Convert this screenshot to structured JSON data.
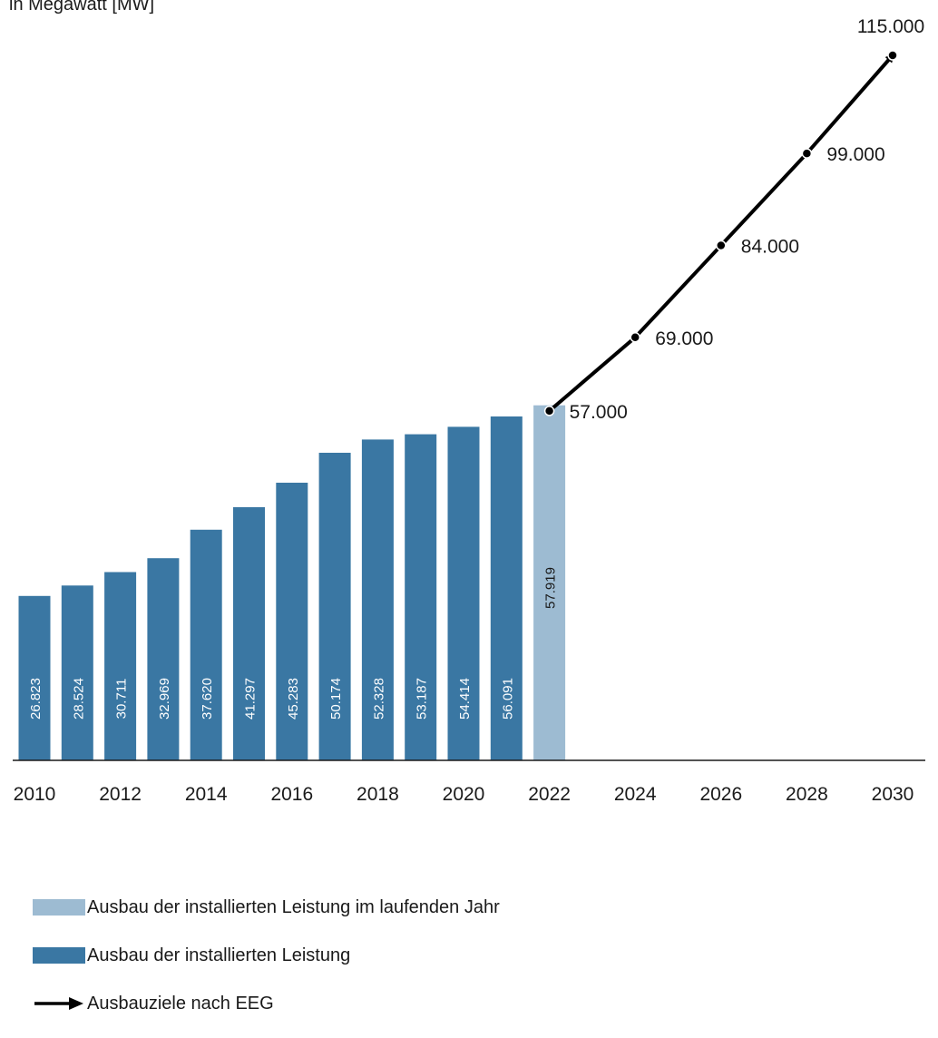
{
  "unit_label": "in Megawatt [MW]",
  "colors": {
    "bar": "#3a77a3",
    "bar_current": "#9dbbd2",
    "target_line": "#000000",
    "axis": "#1a1a1a",
    "bar_label": "#ffffff",
    "bar_current_label": "#1a1a1a"
  },
  "chart_data": {
    "type": "bar",
    "title": "",
    "ylabel": "in Megawatt [MW]",
    "xlabel": "",
    "ylim": [
      0,
      115000
    ],
    "grid": false,
    "x_ticks": [
      "2010",
      "2012",
      "2014",
      "2016",
      "2018",
      "2020",
      "2022",
      "2024",
      "2026",
      "2028",
      "2030"
    ],
    "bars": [
      {
        "year": 2010,
        "value": 26823,
        "label": "26.823",
        "series": "Ausbau der installierten Leistung"
      },
      {
        "year": 2011,
        "value": 28524,
        "label": "28.524",
        "series": "Ausbau der installierten Leistung"
      },
      {
        "year": 2012,
        "value": 30711,
        "label": "30.711",
        "series": "Ausbau der installierten Leistung"
      },
      {
        "year": 2013,
        "value": 32969,
        "label": "32.969",
        "series": "Ausbau der installierten Leistung"
      },
      {
        "year": 2014,
        "value": 37620,
        "label": "37.620",
        "series": "Ausbau der installierten Leistung"
      },
      {
        "year": 2015,
        "value": 41297,
        "label": "41.297",
        "series": "Ausbau der installierten Leistung"
      },
      {
        "year": 2016,
        "value": 45283,
        "label": "45.283",
        "series": "Ausbau der installierten Leistung"
      },
      {
        "year": 2017,
        "value": 50174,
        "label": "50.174",
        "series": "Ausbau der installierten Leistung"
      },
      {
        "year": 2018,
        "value": 52328,
        "label": "52.328",
        "series": "Ausbau der installierten Leistung"
      },
      {
        "year": 2019,
        "value": 53187,
        "label": "53.187",
        "series": "Ausbau der installierten Leistung"
      },
      {
        "year": 2020,
        "value": 54414,
        "label": "54.414",
        "series": "Ausbau der installierten Leistung"
      },
      {
        "year": 2021,
        "value": 56091,
        "label": "56.091",
        "series": "Ausbau der installierten Leistung"
      },
      {
        "year": 2022,
        "value": 57919,
        "label": "57.919",
        "series": "Ausbau der installierten Leistung im laufenden Jahr"
      }
    ],
    "targets": {
      "name": "Ausbauziele nach EEG",
      "points": [
        {
          "year": 2022,
          "value": 57000,
          "label": "57.000"
        },
        {
          "year": 2024,
          "value": 69000,
          "label": "69.000"
        },
        {
          "year": 2026,
          "value": 84000,
          "label": "84.000"
        },
        {
          "year": 2028,
          "value": 99000,
          "label": "99.000"
        },
        {
          "year": 2030,
          "value": 115000,
          "label": "115.000"
        }
      ]
    },
    "legend_position": "bottom-left",
    "legend": [
      {
        "label": "Ausbau der installierten Leistung im laufenden Jahr",
        "kind": "bar_current"
      },
      {
        "label": "Ausbau der installierten Leistung",
        "kind": "bar"
      },
      {
        "label": "Ausbauziele nach EEG",
        "kind": "arrow"
      }
    ]
  }
}
